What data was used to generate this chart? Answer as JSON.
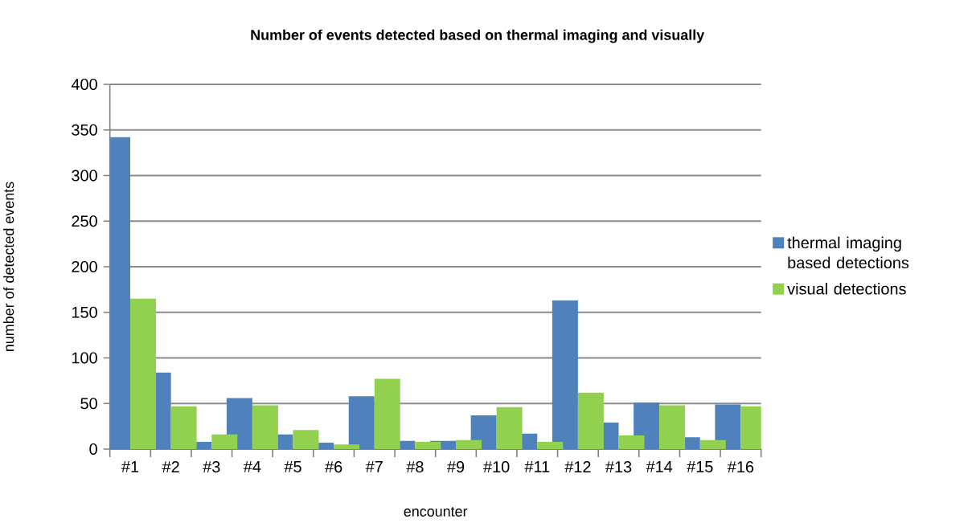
{
  "chart_data": {
    "type": "bar",
    "title": "Number of events detected based on thermal imaging and visually",
    "xlabel": "encounter",
    "ylabel": "number  of detected events",
    "categories": [
      "#1",
      "#2",
      "#3",
      "#4",
      "#5",
      "#6",
      "#7",
      "#8",
      "#9",
      "#10",
      "#11",
      "#12",
      "#13",
      "#14",
      "#15",
      "#16"
    ],
    "series": [
      {
        "name": "thermal imaging based detections",
        "color": "#4f81bd",
        "values": [
          342,
          84,
          8,
          56,
          16,
          7,
          58,
          9,
          9,
          37,
          17,
          163,
          29,
          51,
          13,
          49
        ]
      },
      {
        "name": "visual detections",
        "color": "#92d050",
        "values": [
          165,
          47,
          16,
          48,
          21,
          5,
          77,
          8,
          10,
          46,
          8,
          62,
          15,
          48,
          10,
          47
        ]
      }
    ],
    "ylim": [
      0,
      400
    ],
    "yticks": [
      0,
      50,
      100,
      150,
      200,
      250,
      300,
      350,
      400
    ],
    "grid": "y",
    "legend": "right"
  }
}
